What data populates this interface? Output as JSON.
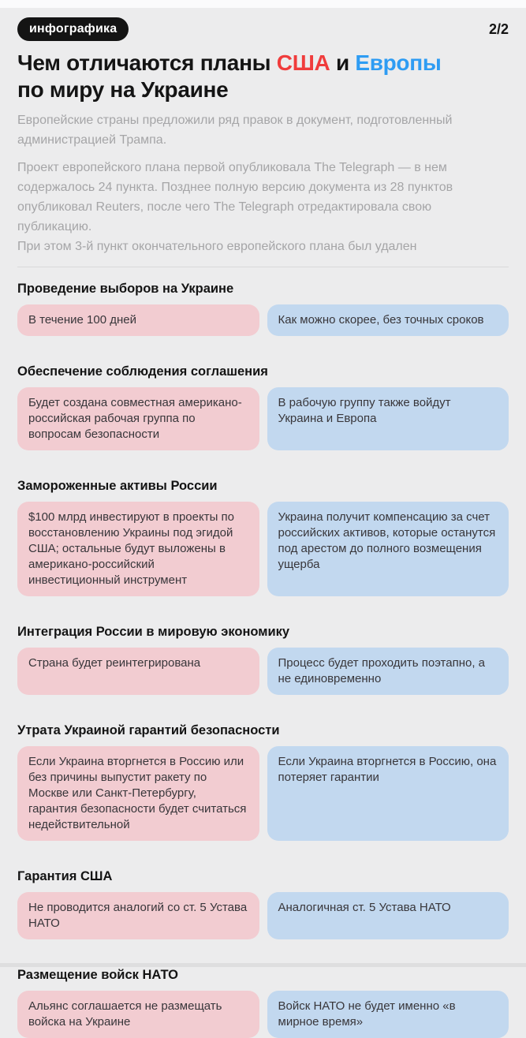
{
  "page": {
    "badge": "инфографика",
    "page_indicator": "2/2"
  },
  "title": {
    "prefix": "Чем отличаются планы ",
    "us": "США",
    "connector": " и ",
    "europe": "Европы",
    "line2": "по миру на Украине"
  },
  "intro": {
    "p1": "Европейские страны предложили ряд правок в документ, подготовленный администрацией Трампа.",
    "p2": "Проект европейского плана первой опубликовала The Telegraph — в нем содержалось 24 пункта. Позднее полную версию документа из 28 пунктов опубликовал Reuters, после чего The Telegraph отредактировала свою публикацию.",
    "p3": "При этом 3-й пункт окончательного европейского плана был удален"
  },
  "colors": {
    "us_accent": "#f03c3c",
    "europe_accent": "#2e9cf3",
    "us_box_bg": "#f2ccd1",
    "europe_box_bg": "#c2d8ef",
    "badge_bg": "#141414"
  },
  "sections": [
    {
      "header": "Проведение выборов на Украине",
      "us_plan": "В течение 100 дней",
      "europe_plan": "Как можно скорее, без точных сроков"
    },
    {
      "header": "Обеспечение соблюдения соглашения",
      "us_plan": "Будет создана совместная американо-российская рабочая группа по вопросам безопасности",
      "europe_plan": "В рабочую группу также войдут Украина и Европа"
    },
    {
      "header": "Замороженные активы России",
      "us_plan": "$100 млрд инвестируют в проекты по восстановлению Украины под эгидой США; остальные будут выложены в американо-российский инвестиционный инструмент",
      "europe_plan": "Украина получит компенсацию за счет российских активов, которые останутся под арестом до полного возмещения ущерба"
    },
    {
      "header": "Интеграция России в мировую экономику",
      "us_plan": "Страна будет реинтегрирована",
      "europe_plan": "Процесс будет проходить поэтапно, а не единовременно"
    },
    {
      "header": "Утрата Украиной гарантий безопасности",
      "us_plan": "Если Украина вторгнется в Россию или без причины выпустит ракету по Москве или Санкт-Петербургу, гарантия безопасности будет считаться недействительной",
      "europe_plan": "Если Украина вторгнется в Россию, она потеряет гарантии"
    },
    {
      "header": "Гарантия США",
      "us_plan": "Не проводится аналогий со ст. 5 Устава НАТО",
      "europe_plan": "Аналогичная ст. 5 Устава НАТО"
    },
    {
      "header": "Размещение войск НАТО",
      "us_plan": "Альянс соглашается не размещать войска на Украине",
      "europe_plan": "Войск НАТО не будет именно «в мирное время»"
    }
  ]
}
